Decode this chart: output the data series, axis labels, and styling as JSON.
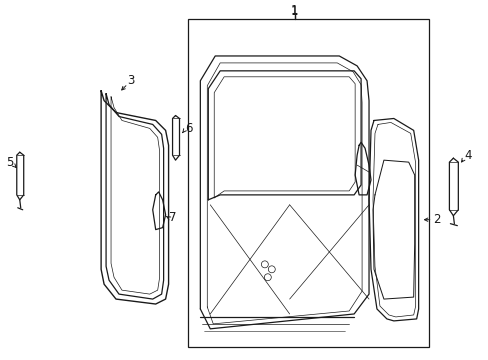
{
  "bg_color": "#ffffff",
  "line_color": "#1a1a1a",
  "lw": 0.9,
  "tlw": 0.5,
  "fig_width": 4.89,
  "fig_height": 3.6,
  "dpi": 100,
  "label_fontsize": 8.5
}
